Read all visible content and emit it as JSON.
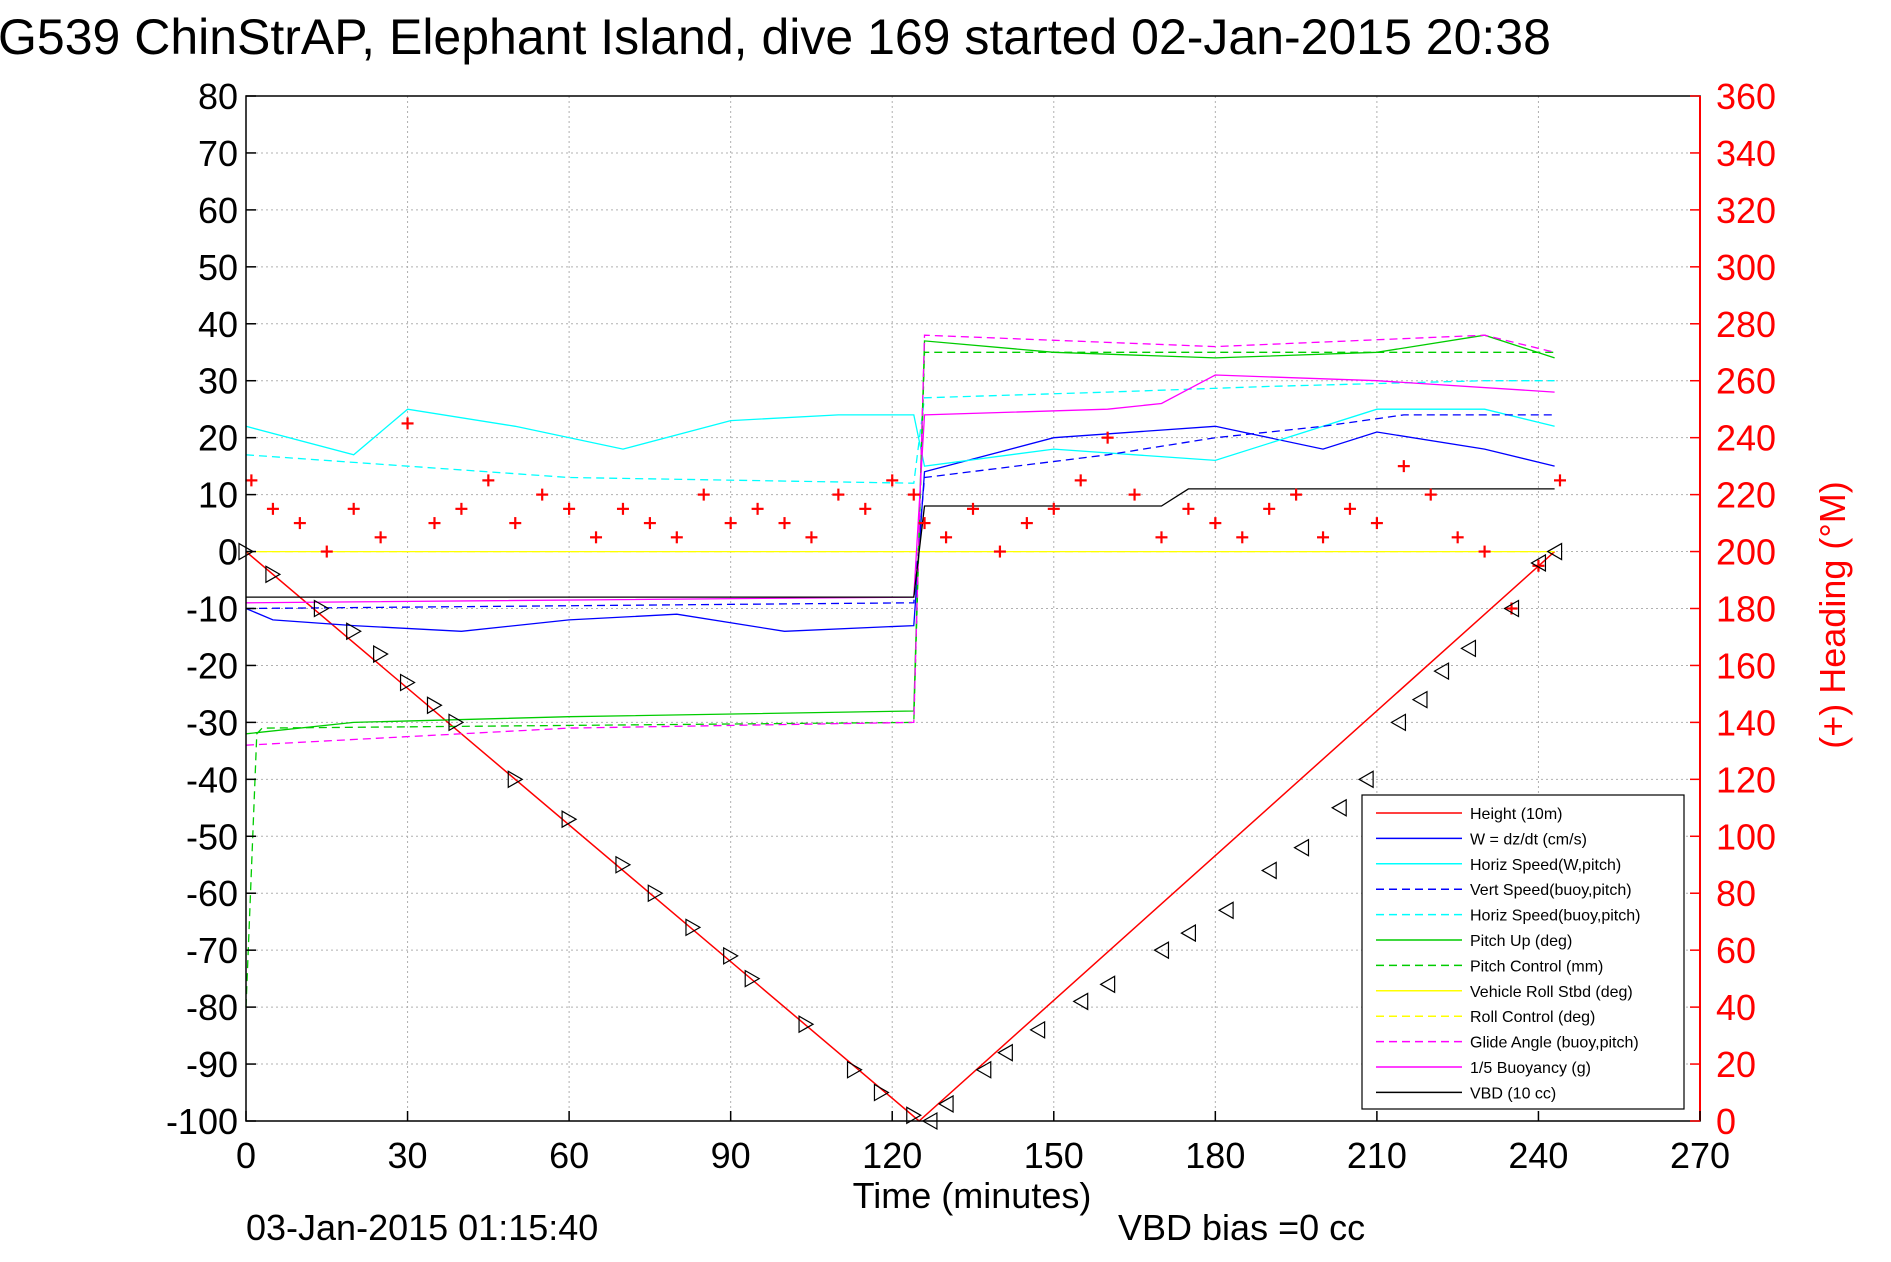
{
  "chart_data": {
    "type": "line",
    "title": "G539 ChinStrAP, Elephant Island, dive 169 started 02-Jan-2015 20:38",
    "xlabel": "Time (minutes)",
    "ylabel": "",
    "y2label": "(+) Heading (°M)",
    "footer_left": "03-Jan-2015 01:15:40",
    "footer_right": "VBD bias =0 cc",
    "xlim": [
      0,
      270
    ],
    "ylim": [
      -100,
      80
    ],
    "y2lim": [
      0,
      360
    ],
    "xticks": [
      "0",
      "30",
      "60",
      "90",
      "120",
      "150",
      "180",
      "210",
      "240",
      "270"
    ],
    "yticks": [
      "80",
      "70",
      "60",
      "50",
      "40",
      "30",
      "20",
      "10",
      "0",
      "-10",
      "-20",
      "-30",
      "-40",
      "-50",
      "-60",
      "-70",
      "-80",
      "-90",
      "-100"
    ],
    "y2ticks": [
      "360",
      "340",
      "320",
      "300",
      "280",
      "260",
      "240",
      "220",
      "200",
      "180",
      "160",
      "140",
      "120",
      "100",
      "80",
      "60",
      "40",
      "20",
      "0"
    ],
    "grid": true,
    "legend_position": "bottom-right",
    "series": [
      {
        "name": "Height (10m)",
        "color": "#ff0000",
        "style": "solid",
        "x": [
          0,
          125,
          243
        ],
        "values": [
          0,
          -100,
          0
        ]
      },
      {
        "name": "W = dz/dt (cm/s)",
        "color": "#0000ff",
        "style": "solid",
        "x": [
          0,
          5,
          20,
          40,
          60,
          80,
          100,
          124,
          126,
          150,
          180,
          200,
          210,
          230,
          243
        ],
        "values": [
          -10,
          -12,
          -13,
          -14,
          -12,
          -11,
          -14,
          -13,
          14,
          20,
          22,
          18,
          21,
          18,
          15
        ]
      },
      {
        "name": "Horiz Speed(W,pitch)",
        "color": "#00ffff",
        "style": "solid",
        "x": [
          0,
          20,
          30,
          50,
          70,
          90,
          110,
          124,
          126,
          150,
          180,
          210,
          230,
          243
        ],
        "values": [
          22,
          17,
          25,
          22,
          18,
          23,
          24,
          24,
          15,
          18,
          16,
          25,
          25,
          22
        ]
      },
      {
        "name": "Vert Speed(buoy,pitch)",
        "color": "#0000ff",
        "style": "dashed",
        "x": [
          0,
          124,
          126,
          160,
          180,
          200,
          215,
          243
        ],
        "values": [
          -10,
          -9,
          13,
          17,
          20,
          22,
          24,
          24
        ]
      },
      {
        "name": "Horiz Speed(buoy,pitch)",
        "color": "#00ffff",
        "style": "dashed",
        "x": [
          0,
          60,
          124,
          126,
          160,
          190,
          230,
          243
        ],
        "values": [
          17,
          13,
          12,
          27,
          28,
          29,
          30,
          30
        ]
      },
      {
        "name": "Pitch Up (deg)",
        "color": "#00cc00",
        "style": "solid",
        "x": [
          0,
          20,
          60,
          124,
          126,
          150,
          180,
          210,
          230,
          243
        ],
        "values": [
          -32,
          -30,
          -29,
          -28,
          37,
          35,
          34,
          35,
          38,
          34
        ]
      },
      {
        "name": "Pitch Control (mm)",
        "color": "#00cc00",
        "style": "dashed",
        "x": [
          0,
          2,
          3,
          124,
          126,
          243
        ],
        "values": [
          -80,
          -32,
          -31,
          -30,
          35,
          35
        ]
      },
      {
        "name": "Vehicle Roll Stbd (deg)",
        "color": "#ffff00",
        "style": "solid",
        "x": [
          0,
          124,
          126,
          160,
          210,
          243
        ],
        "values": [
          0,
          0,
          0,
          0,
          0,
          0
        ]
      },
      {
        "name": "Roll Control (deg)",
        "color": "#ffff00",
        "style": "dashed",
        "x": [
          0,
          243
        ],
        "values": [
          0,
          0
        ]
      },
      {
        "name": "Glide Angle (buoy,pitch)",
        "color": "#ff00ff",
        "style": "dashed",
        "x": [
          0,
          60,
          124,
          126,
          180,
          230,
          243
        ],
        "values": [
          -34,
          -31,
          -30,
          38,
          36,
          38,
          35
        ]
      },
      {
        "name": "1/5 Buoyancy (g)",
        "color": "#ff00ff",
        "style": "solid",
        "x": [
          0,
          124,
          126,
          160,
          170,
          180,
          210,
          243
        ],
        "values": [
          -9,
          -8,
          24,
          25,
          26,
          31,
          30,
          28
        ]
      },
      {
        "name": "VBD (10 cc)",
        "color": "#000000",
        "style": "solid",
        "x": [
          0,
          124,
          126,
          170,
          175,
          243
        ],
        "values": [
          -8,
          -8,
          8,
          8,
          11,
          11
        ]
      }
    ],
    "heading_series": {
      "name": "Heading",
      "color": "#ff0000",
      "marker": "+",
      "x": [
        1,
        5,
        10,
        15,
        20,
        25,
        30,
        35,
        40,
        45,
        50,
        55,
        60,
        65,
        70,
        75,
        80,
        85,
        90,
        95,
        100,
        105,
        110,
        115,
        120,
        124,
        126,
        130,
        135,
        140,
        145,
        150,
        155,
        160,
        165,
        170,
        175,
        180,
        185,
        190,
        195,
        200,
        205,
        210,
        215,
        220,
        225,
        230,
        235,
        240,
        244
      ],
      "values": [
        225,
        215,
        210,
        200,
        215,
        205,
        245,
        210,
        215,
        225,
        210,
        220,
        215,
        205,
        215,
        210,
        205,
        220,
        210,
        215,
        210,
        205,
        220,
        215,
        225,
        220,
        210,
        205,
        215,
        200,
        210,
        215,
        225,
        240,
        220,
        205,
        215,
        210,
        205,
        215,
        220,
        205,
        215,
        210,
        230,
        220,
        205,
        200,
        180,
        195,
        225
      ]
    },
    "markers": [
      {
        "x": 0,
        "y": 0
      },
      {
        "x": 5,
        "y": -4
      },
      {
        "x": 14,
        "y": -10
      },
      {
        "x": 20,
        "y": -14
      },
      {
        "x": 25,
        "y": -18
      },
      {
        "x": 30,
        "y": -23
      },
      {
        "x": 35,
        "y": -27
      },
      {
        "x": 39,
        "y": -30
      },
      {
        "x": 50,
        "y": -40
      },
      {
        "x": 60,
        "y": -47
      },
      {
        "x": 70,
        "y": -55
      },
      {
        "x": 76,
        "y": -60
      },
      {
        "x": 83,
        "y": -66
      },
      {
        "x": 90,
        "y": -71
      },
      {
        "x": 94,
        "y": -75
      },
      {
        "x": 104,
        "y": -83
      },
      {
        "x": 113,
        "y": -91
      },
      {
        "x": 118,
        "y": -95
      },
      {
        "x": 124,
        "y": -99
      },
      {
        "x": 127,
        "y": -100
      },
      {
        "x": 130,
        "y": -97
      },
      {
        "x": 137,
        "y": -91
      },
      {
        "x": 141,
        "y": -88
      },
      {
        "x": 147,
        "y": -84
      },
      {
        "x": 155,
        "y": -79
      },
      {
        "x": 160,
        "y": -76
      },
      {
        "x": 170,
        "y": -70
      },
      {
        "x": 175,
        "y": -67
      },
      {
        "x": 182,
        "y": -63
      },
      {
        "x": 190,
        "y": -56
      },
      {
        "x": 196,
        "y": -52
      },
      {
        "x": 203,
        "y": -45
      },
      {
        "x": 208,
        "y": -40
      },
      {
        "x": 214,
        "y": -30
      },
      {
        "x": 218,
        "y": -26
      },
      {
        "x": 222,
        "y": -21
      },
      {
        "x": 227,
        "y": -17
      },
      {
        "x": 235,
        "y": -10
      },
      {
        "x": 240,
        "y": -2
      },
      {
        "x": 243,
        "y": 0
      }
    ]
  }
}
